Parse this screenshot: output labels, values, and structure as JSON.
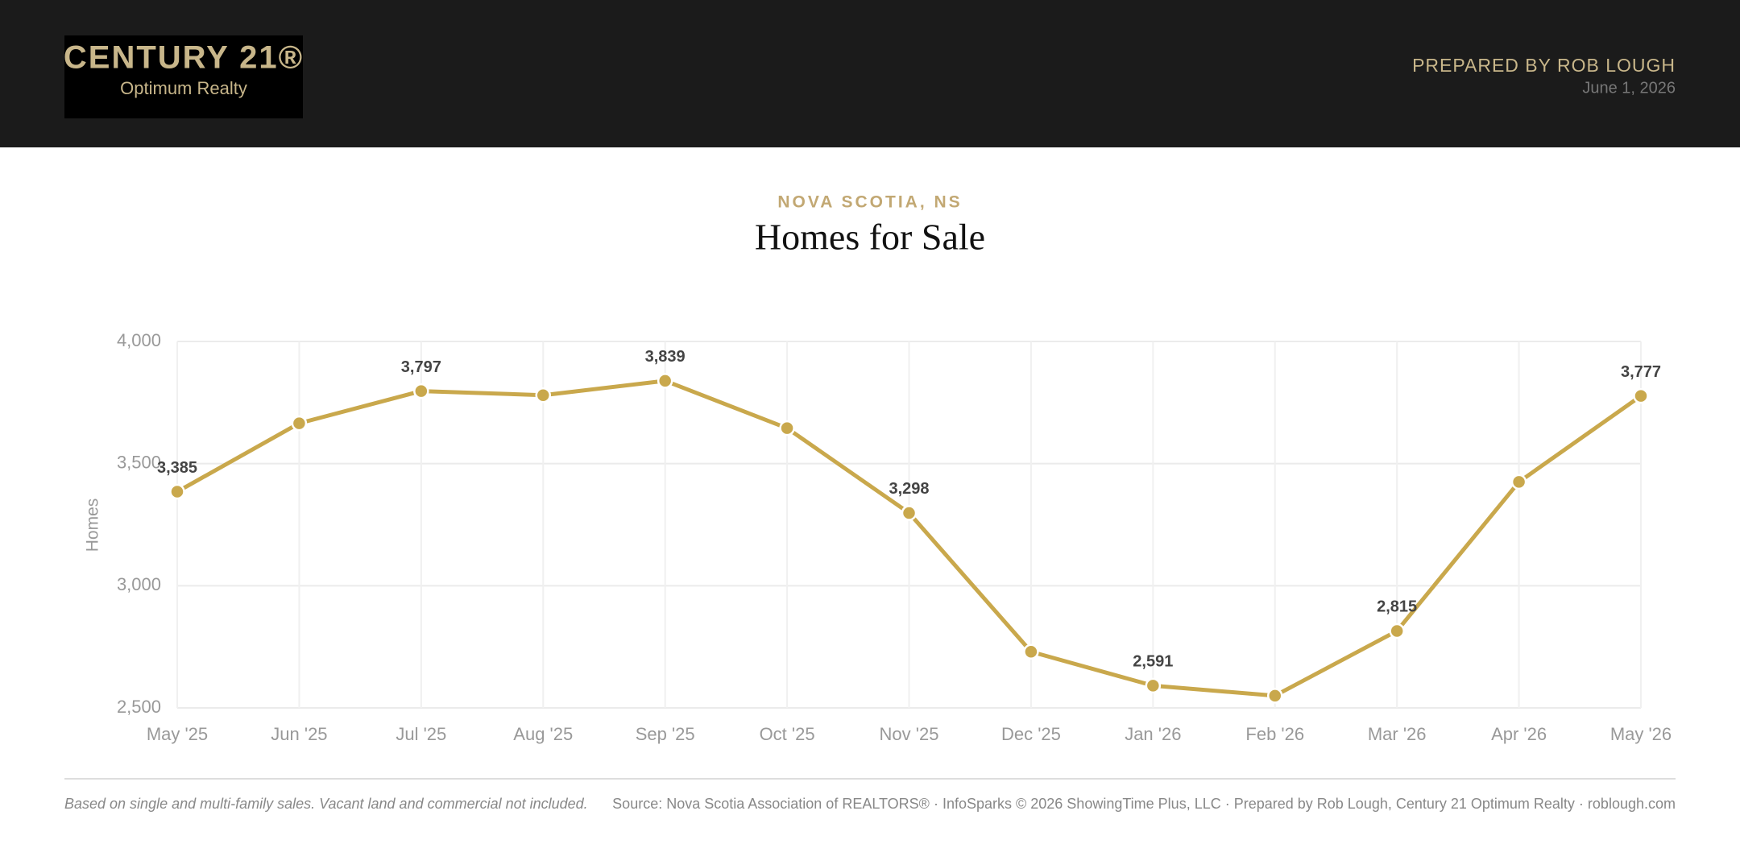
{
  "header": {
    "logo_line1": "CENTURY 21®",
    "logo_line2": "Optimum Realty",
    "prepared_by": "PREPARED BY ROB LOUGH",
    "date": "June 1, 2026"
  },
  "chart_data": {
    "type": "line",
    "subtitle": "NOVA SCOTIA, NS",
    "title": "Homes for Sale",
    "y_label": "Homes",
    "categories": [
      "May '25",
      "Jun '25",
      "Jul '25",
      "Aug '25",
      "Sep '25",
      "Oct '25",
      "Nov '25",
      "Dec '25",
      "Jan '26",
      "Feb '26",
      "Mar '26",
      "Apr '26",
      "May '26"
    ],
    "values": [
      3385,
      3665,
      3797,
      3780,
      3839,
      3645,
      3298,
      2730,
      2591,
      2550,
      2815,
      3425,
      3777
    ],
    "value_labels": [
      "3,385",
      null,
      "3,797",
      null,
      "3,839",
      null,
      "3,298",
      null,
      "2,591",
      null,
      "2,815",
      null,
      "3,777"
    ],
    "color": "#c9a84c",
    "ylim": [
      2500,
      4000
    ],
    "yticks": [
      {
        "value": 2500,
        "label": "2,500"
      },
      {
        "value": 3000,
        "label": "3,000"
      },
      {
        "value": 3500,
        "label": "3,500"
      },
      {
        "value": 4000,
        "label": "4,000"
      }
    ],
    "grid": true
  },
  "footer": {
    "note": "Based on single and multi-family sales. Vacant land and commercial not included.",
    "source": "Source: Nova Scotia Association of REALTORS® · InfoSparks © 2026 ShowingTime Plus, LLC · Prepared by Rob Lough, Century 21 Optimum Realty · roblough.com"
  }
}
